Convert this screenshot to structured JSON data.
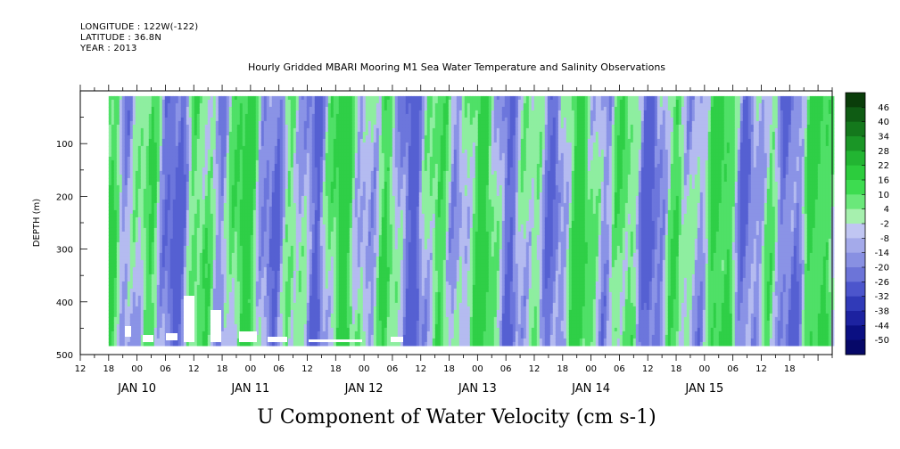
{
  "header": {
    "longitude": "LONGITUDE : 122W(-122)",
    "latitude": "LATITUDE : 36.8N",
    "year": "YEAR : 2013"
  },
  "chart_data": {
    "type": "heatmap",
    "title": "Hourly Gridded MBARI Mooring M1 Sea Water Temperature and Salinity Observations",
    "xlabel": "U Component of Water Velocity (cm s-1)",
    "ylabel": "DEPTH (m)",
    "x_range": [
      "JAN 09 12:00",
      "JAN 16 03:00"
    ],
    "ylim": [
      500,
      0
    ],
    "y_ticks": [
      100,
      200,
      300,
      400,
      500
    ],
    "hour_ticks": [
      "12",
      "18",
      "00",
      "06",
      "12",
      "18",
      "00",
      "06",
      "12",
      "18",
      "00",
      "06",
      "12",
      "18",
      "00",
      "06",
      "12",
      "18",
      "00",
      "06",
      "12",
      "18",
      "00",
      "06",
      "12",
      "18"
    ],
    "date_labels": [
      "JAN 10",
      "JAN 11",
      "JAN 12",
      "JAN 13",
      "JAN 14",
      "JAN 15"
    ],
    "data_start": "JAN 09 18:00",
    "data_depth_range": [
      10,
      480
    ],
    "colorbar": {
      "labels": [
        "46",
        "40",
        "34",
        "28",
        "22",
        "16",
        "10",
        "4",
        "-2",
        "-8",
        "-14",
        "-20",
        "-26",
        "-32",
        "-38",
        "-44",
        "-50"
      ],
      "colors": [
        "#0a3d0a",
        "#0f5c14",
        "#14781c",
        "#1a9626",
        "#22b532",
        "#2ccc3d",
        "#3ddc50",
        "#6ae87a",
        "#a6f0ae",
        "#c0c6f2",
        "#a4aaea",
        "#8890e2",
        "#6c74d8",
        "#4c55cc",
        "#303ab8",
        "#1c22a0",
        "#0a0f82",
        "#060868"
      ]
    },
    "palette": {
      "green_strong": "#2fcf47",
      "green": "#4fe067",
      "green_light": "#8eeea0",
      "blue_light": "#b4bbf0",
      "blue": "#8a93e6",
      "blue_strong": "#6c76dc",
      "blue_deep": "#5560d2"
    }
  }
}
